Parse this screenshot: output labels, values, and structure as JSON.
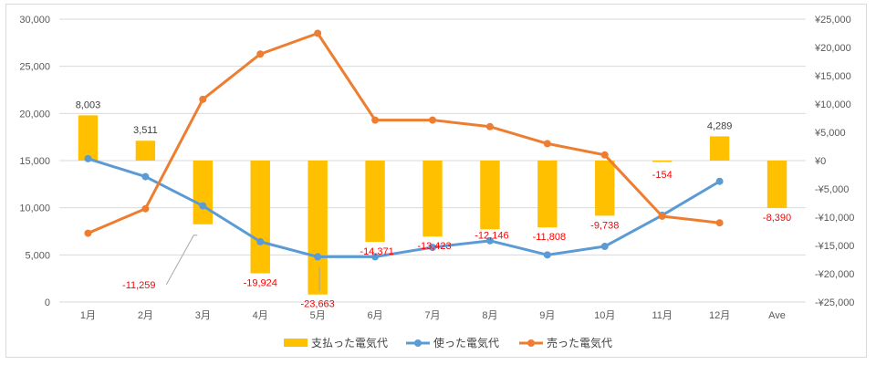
{
  "chart_data": {
    "type": "bar+line",
    "categories": [
      "1月",
      "2月",
      "3月",
      "4月",
      "5月",
      "6月",
      "7月",
      "8月",
      "9月",
      "10月",
      "11月",
      "12月",
      "Ave"
    ],
    "left_axis": {
      "ylim": [
        0,
        30000
      ],
      "ticks": [
        "0",
        "5,000",
        "10,000",
        "15,000",
        "20,000",
        "25,000",
        "30,000"
      ]
    },
    "right_axis": {
      "ylim": [
        -25000,
        25000
      ],
      "ticks": [
        "-¥25,000",
        "-¥20,000",
        "-¥15,000",
        "-¥10,000",
        "-¥5,000",
        "¥0",
        "¥5,000",
        "¥10,000",
        "¥15,000",
        "¥20,000",
        "¥25,000"
      ]
    },
    "series": [
      {
        "name": "支払った電気代",
        "kind": "bar",
        "axis": "right",
        "color": "#ffc000",
        "values": [
          8003,
          3511,
          -11259,
          -19924,
          -23663,
          -14371,
          -13423,
          -12146,
          -11808,
          -9738,
          -154,
          4289,
          -8390
        ],
        "labels": [
          "8,003",
          "3,511",
          "-11,259",
          "-19,924",
          "-23,663",
          "-14,371",
          "-13,423",
          "-12,146",
          "-11,808",
          "-9,738",
          "-154",
          "4,289",
          "-8,390"
        ]
      },
      {
        "name": "使った電気代",
        "kind": "line",
        "axis": "left",
        "color": "#5b9bd5",
        "values": [
          15200,
          13300,
          10200,
          6400,
          4800,
          4800,
          5800,
          6500,
          5000,
          5900,
          9200,
          12800,
          null
        ]
      },
      {
        "name": "売った電気代",
        "kind": "line",
        "axis": "left",
        "color": "#ed7d31",
        "values": [
          7300,
          9900,
          21500,
          26300,
          28500,
          19300,
          19300,
          18600,
          16800,
          15600,
          9100,
          8400,
          null
        ]
      }
    ],
    "grid": true,
    "legend": "bottom"
  }
}
